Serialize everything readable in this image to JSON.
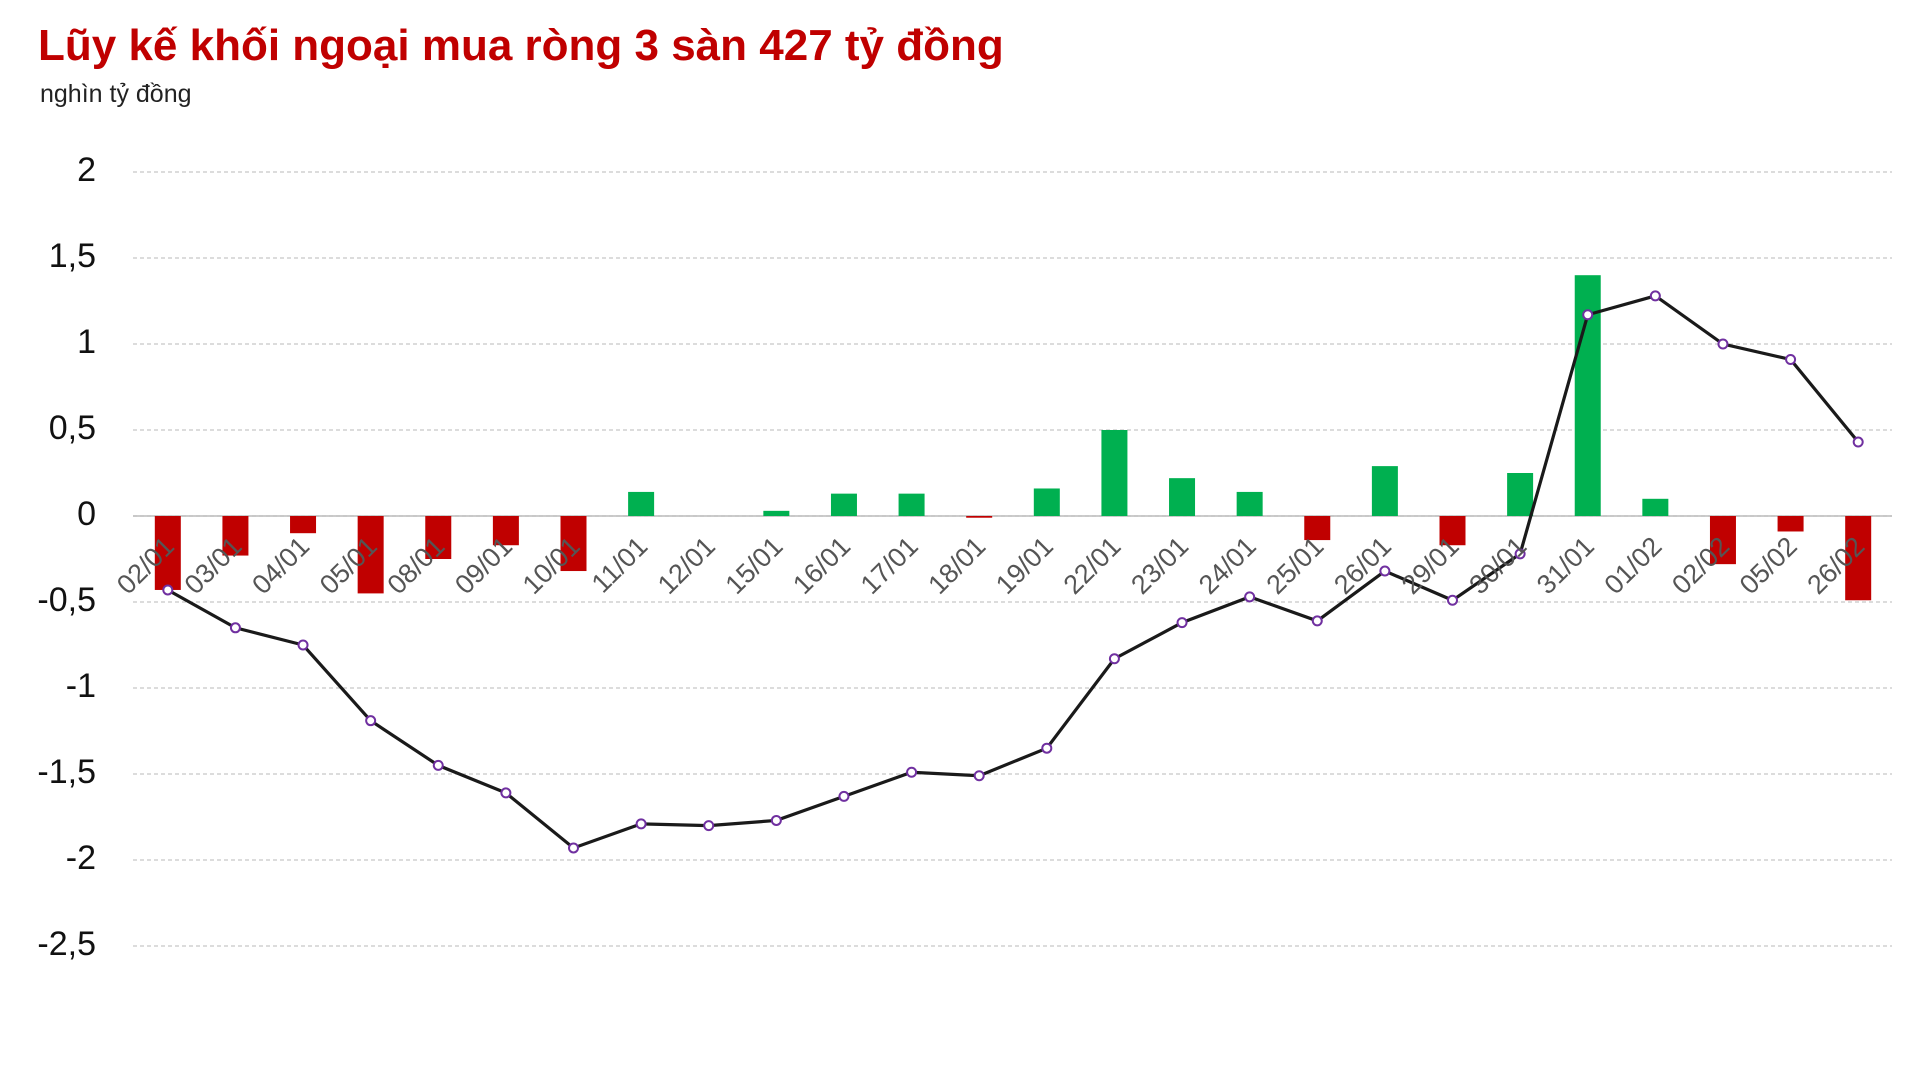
{
  "chart_data": {
    "type": "bar",
    "title": "Lũy kế khối ngoại mua ròng 3 sàn 427 tỷ đồng",
    "subtitle": "nghìn tỷ đồng",
    "categories": [
      "02/01",
      "03/01",
      "04/01",
      "05/01",
      "08/01",
      "09/01",
      "10/01",
      "11/01",
      "12/01",
      "15/01",
      "16/01",
      "17/01",
      "18/01",
      "19/01",
      "22/01",
      "23/01",
      "24/01",
      "25/01",
      "26/01",
      "29/01",
      "30/01",
      "31/01",
      "01/02",
      "02/02",
      "05/02",
      "26/02"
    ],
    "series": [
      {
        "type": "bar",
        "color_positive": "#00b050",
        "color_negative": "#c00000",
        "values": [
          -0.43,
          -0.23,
          -0.1,
          -0.45,
          -0.25,
          -0.17,
          -0.32,
          0.14,
          0,
          0.03,
          0.13,
          0.13,
          -0.01,
          0.16,
          0.5,
          0.22,
          0.14,
          -0.14,
          0.29,
          -0.17,
          0.25,
          1.4,
          0.1,
          -0.28,
          -0.09,
          -0.49
        ]
      },
      {
        "type": "line",
        "color": "#1a1a1a",
        "marker_color": "#7030a0",
        "values": [
          -0.43,
          -0.65,
          -0.75,
          -1.19,
          -1.45,
          -1.61,
          -1.93,
          -1.79,
          -1.8,
          -1.77,
          -1.63,
          -1.49,
          -1.51,
          -1.35,
          -0.83,
          -0.62,
          -0.47,
          -0.61,
          -0.32,
          -0.49,
          -0.22,
          1.17,
          1.28,
          1.0,
          0.91,
          0.43
        ]
      }
    ],
    "ylim": [
      -2.5,
      2
    ],
    "yticks": [
      2,
      {
        "value": 1.5,
        "label": "1,5"
      },
      1,
      {
        "value": 0.5,
        "label": "0,5"
      },
      0,
      {
        "value": -0.5,
        "label": "-0,5"
      },
      -1,
      {
        "value": -1.5,
        "label": "-1,5"
      },
      -2,
      {
        "value": -2.5,
        "label": "-2,5"
      }
    ],
    "grid": true
  }
}
